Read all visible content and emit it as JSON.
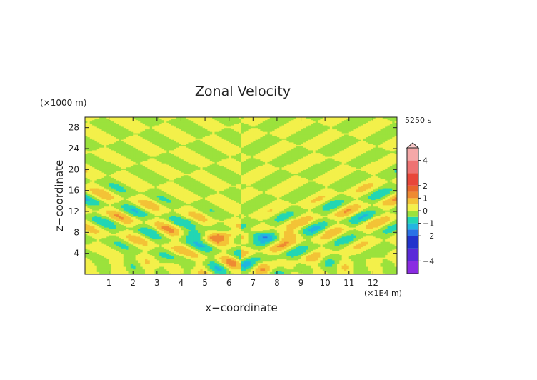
{
  "chart_data": {
    "type": "heatmap",
    "title": "Zonal Velocity",
    "xlabel": "x−coordinate",
    "ylabel": "z−coordinate",
    "x_unit": "(×1E4 m)",
    "y_unit": "(×1000 m)",
    "time_label": "5250 s",
    "xlim": [
      0,
      13
    ],
    "ylim": [
      0,
      30
    ],
    "x_ticks": [
      1,
      2,
      3,
      4,
      5,
      6,
      7,
      8,
      9,
      10,
      11,
      12
    ],
    "y_ticks": [
      4,
      8,
      12,
      16,
      20,
      24,
      28
    ],
    "colorbar": {
      "ticks": [
        4,
        2,
        1,
        0,
        -1,
        -2,
        -4
      ],
      "min": -5,
      "max": 5,
      "extend_top": true,
      "bands": [
        {
          "from": -5,
          "to": -4,
          "color": "#8a2be2"
        },
        {
          "from": -4,
          "to": -3,
          "color": "#5a2ad8"
        },
        {
          "from": -3,
          "to": -2,
          "color": "#2233cc"
        },
        {
          "from": -2,
          "to": -1.5,
          "color": "#2a72e6"
        },
        {
          "from": -1.5,
          "to": -1,
          "color": "#22b5e0"
        },
        {
          "from": -1,
          "to": -0.5,
          "color": "#22d6b4"
        },
        {
          "from": -0.5,
          "to": 0,
          "color": "#9be23c"
        },
        {
          "from": 0,
          "to": 0.5,
          "color": "#f3f04a"
        },
        {
          "from": 0.5,
          "to": 1,
          "color": "#f3c336"
        },
        {
          "from": 1,
          "to": 1.5,
          "color": "#ee8a32"
        },
        {
          "from": 1.5,
          "to": 2,
          "color": "#e8662c"
        },
        {
          "from": 2,
          "to": 3,
          "color": "#e8473a"
        },
        {
          "from": 3,
          "to": 4,
          "color": "#ee7373"
        },
        {
          "from": 4,
          "to": 5,
          "color": "#f5a8a8"
        }
      ]
    }
  }
}
